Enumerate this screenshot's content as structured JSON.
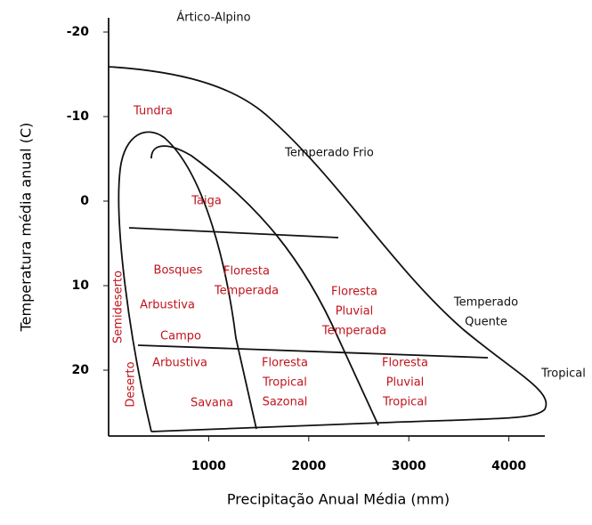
{
  "axes": {
    "x": {
      "label": "Precipitação Anual Média (mm)",
      "ticks": [
        1000,
        2000,
        3000,
        4000
      ]
    },
    "y": {
      "label": "Temperatura média anual (C)",
      "ticks": [
        -20,
        -10,
        0,
        10,
        20
      ]
    }
  },
  "zones": [
    {
      "lines": [
        "Ártico-Alpino"
      ]
    },
    {
      "lines": [
        "Temperado Frio"
      ]
    },
    {
      "lines": [
        "Temperado",
        "Quente"
      ]
    },
    {
      "lines": [
        "Tropical"
      ]
    }
  ],
  "biomes": [
    {
      "lines": [
        "Tundra"
      ]
    },
    {
      "lines": [
        "Taiga"
      ]
    },
    {
      "lines": [
        "Bosques"
      ]
    },
    {
      "lines": [
        "Floresta",
        "Temperada"
      ]
    },
    {
      "lines": [
        "Floresta",
        "Pluvial",
        "Temperada"
      ]
    },
    {
      "lines": [
        "Semideserto"
      ]
    },
    {
      "lines": [
        "Arbustiva"
      ]
    },
    {
      "lines": [
        "Campo"
      ]
    },
    {
      "lines": [
        "Arbustiva"
      ]
    },
    {
      "lines": [
        "Floresta",
        "Tropical",
        "Sazonal"
      ]
    },
    {
      "lines": [
        "Floresta",
        "Pluvial",
        "Tropical"
      ]
    },
    {
      "lines": [
        "Deserto"
      ]
    },
    {
      "lines": [
        "Savana"
      ]
    }
  ]
}
